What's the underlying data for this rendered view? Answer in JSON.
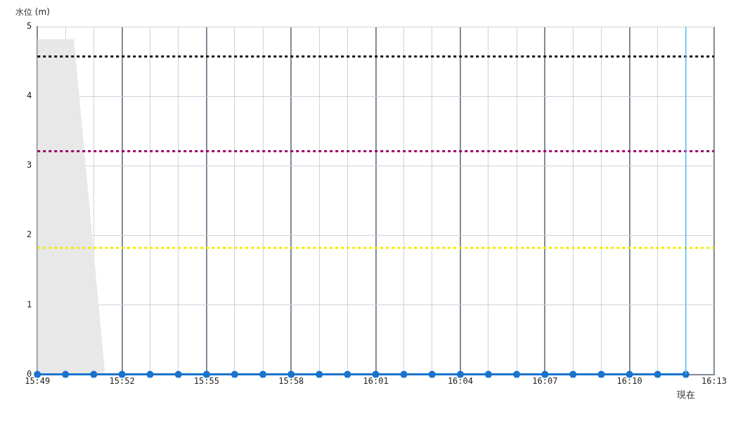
{
  "chart_data": {
    "type": "line",
    "ylabel": "水位 (m)",
    "xlim": [
      15.8167,
      16.2167
    ],
    "ylim": [
      0,
      5
    ],
    "yticks": [
      0,
      1,
      2,
      3,
      4,
      5
    ],
    "xticks": [
      {
        "value": 15.8167,
        "label": "15:49"
      },
      {
        "value": 15.8333,
        "label": null
      },
      {
        "value": 15.85,
        "label": null
      },
      {
        "value": 15.8667,
        "label": "15:52"
      },
      {
        "value": 15.8833,
        "label": null
      },
      {
        "value": 15.9,
        "label": null
      },
      {
        "value": 15.9167,
        "label": "15:55"
      },
      {
        "value": 15.9333,
        "label": null
      },
      {
        "value": 15.95,
        "label": null
      },
      {
        "value": 15.9667,
        "label": "15:58"
      },
      {
        "value": 15.9833,
        "label": null
      },
      {
        "value": 16,
        "label": null
      },
      {
        "value": 16.0167,
        "label": "16:01"
      },
      {
        "value": 16.0333,
        "label": null
      },
      {
        "value": 16.05,
        "label": null
      },
      {
        "value": 16.0667,
        "label": "16:04"
      },
      {
        "value": 16.0833,
        "label": null
      },
      {
        "value": 16.1,
        "label": null
      },
      {
        "value": 16.1167,
        "label": "16:07"
      },
      {
        "value": 16.1333,
        "label": null
      },
      {
        "value": 16.15,
        "label": null
      },
      {
        "value": 16.1667,
        "label": "16:10"
      },
      {
        "value": 16.1833,
        "label": null
      },
      {
        "value": 16.2,
        "label": null
      },
      {
        "value": 16.2167,
        "label": "16:13"
      }
    ],
    "grid": true,
    "legend": false,
    "marker": "circle",
    "line_style": "solid",
    "series": [
      {
        "type": "area",
        "color": "#e8e8e8",
        "marker": "none",
        "x": [
          15.8167,
          15.8383,
          15.8567
        ],
        "values": [
          4.82,
          4.82,
          0
        ]
      },
      {
        "color": "#1874cd",
        "x": [
          15.8167,
          15.8333,
          15.85,
          15.8667,
          15.8833,
          15.9,
          15.9167,
          15.9333,
          15.95,
          15.9667,
          15.9833,
          16,
          16.0167,
          16.0333,
          16.05,
          16.0667,
          16.0833,
          16.1,
          16.1167,
          16.1333,
          16.15,
          16.1667,
          16.1833,
          16.2
        ],
        "values": [
          0,
          0,
          0,
          0,
          0,
          0,
          0,
          0,
          0,
          0,
          0,
          0,
          0,
          0,
          0,
          0,
          0,
          0,
          0,
          0,
          0,
          0,
          0,
          0
        ]
      }
    ],
    "ref_lines": [
      {
        "axis": "y",
        "value": 4.57,
        "label": null,
        "color": "#111111",
        "line_style": "dotted"
      },
      {
        "axis": "y",
        "value": 3.21,
        "label": null,
        "color": "#990066",
        "line_style": "dotted"
      },
      {
        "axis": "y",
        "value": 1.82,
        "label": null,
        "color": "#eeee00",
        "line_style": "dotted"
      },
      {
        "axis": "x",
        "value": 16.2,
        "label": "現在",
        "color": "#55bbff",
        "line_style": "solid"
      }
    ]
  }
}
